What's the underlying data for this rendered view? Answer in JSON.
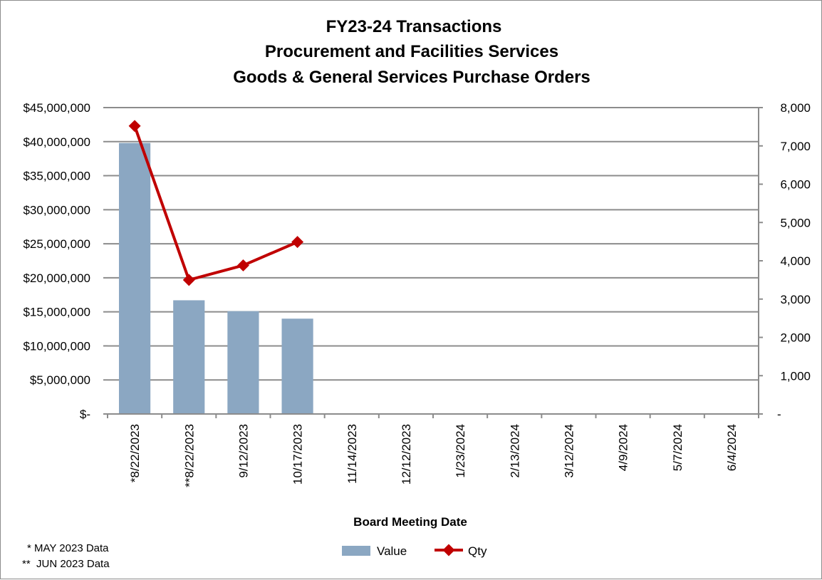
{
  "chart_data": {
    "type": "bar",
    "title": [
      "FY23-24 Transactions",
      "Procurement and Facilities Services",
      "Goods & General Services Purchase Orders"
    ],
    "xlabel": "Board Meeting Date",
    "categories": [
      "*8/22/2023",
      "**8/22/2023",
      "9/12/2023",
      "10/17/2023",
      "11/14/2023",
      "12/12/2023",
      "1/23/2024",
      "2/13/2024",
      "3/12/2024",
      "4/9/2024",
      "5/7/2024",
      "6/4/2024"
    ],
    "series": [
      {
        "name": "Value",
        "type": "bar",
        "axis": "left",
        "color": "#8ba7c2",
        "values": [
          39800000,
          16700000,
          15100000,
          14000000,
          null,
          null,
          null,
          null,
          null,
          null,
          null,
          null
        ]
      },
      {
        "name": "Qty",
        "type": "line",
        "axis": "right",
        "color": "#c00000",
        "values": [
          7520,
          3500,
          3880,
          4490,
          null,
          null,
          null,
          null,
          null,
          null,
          null,
          null
        ]
      }
    ],
    "ylim_left": [
      0,
      45000000
    ],
    "ylim_right": [
      0,
      8000
    ],
    "yticks_left": [
      "$-",
      "$5,000,000",
      "$10,000,000",
      "$15,000,000",
      "$20,000,000",
      "$25,000,000",
      "$30,000,000",
      "$35,000,000",
      "$40,000,000",
      "$45,000,000"
    ],
    "yticks_right": [
      "-",
      "1,000",
      "2,000",
      "3,000",
      "4,000",
      "5,000",
      "6,000",
      "7,000",
      "8,000"
    ],
    "grid": true,
    "legend": "bottom-center"
  },
  "notes": [
    "* MAY 2023 Data",
    "**  JUN 2023 Data"
  ]
}
